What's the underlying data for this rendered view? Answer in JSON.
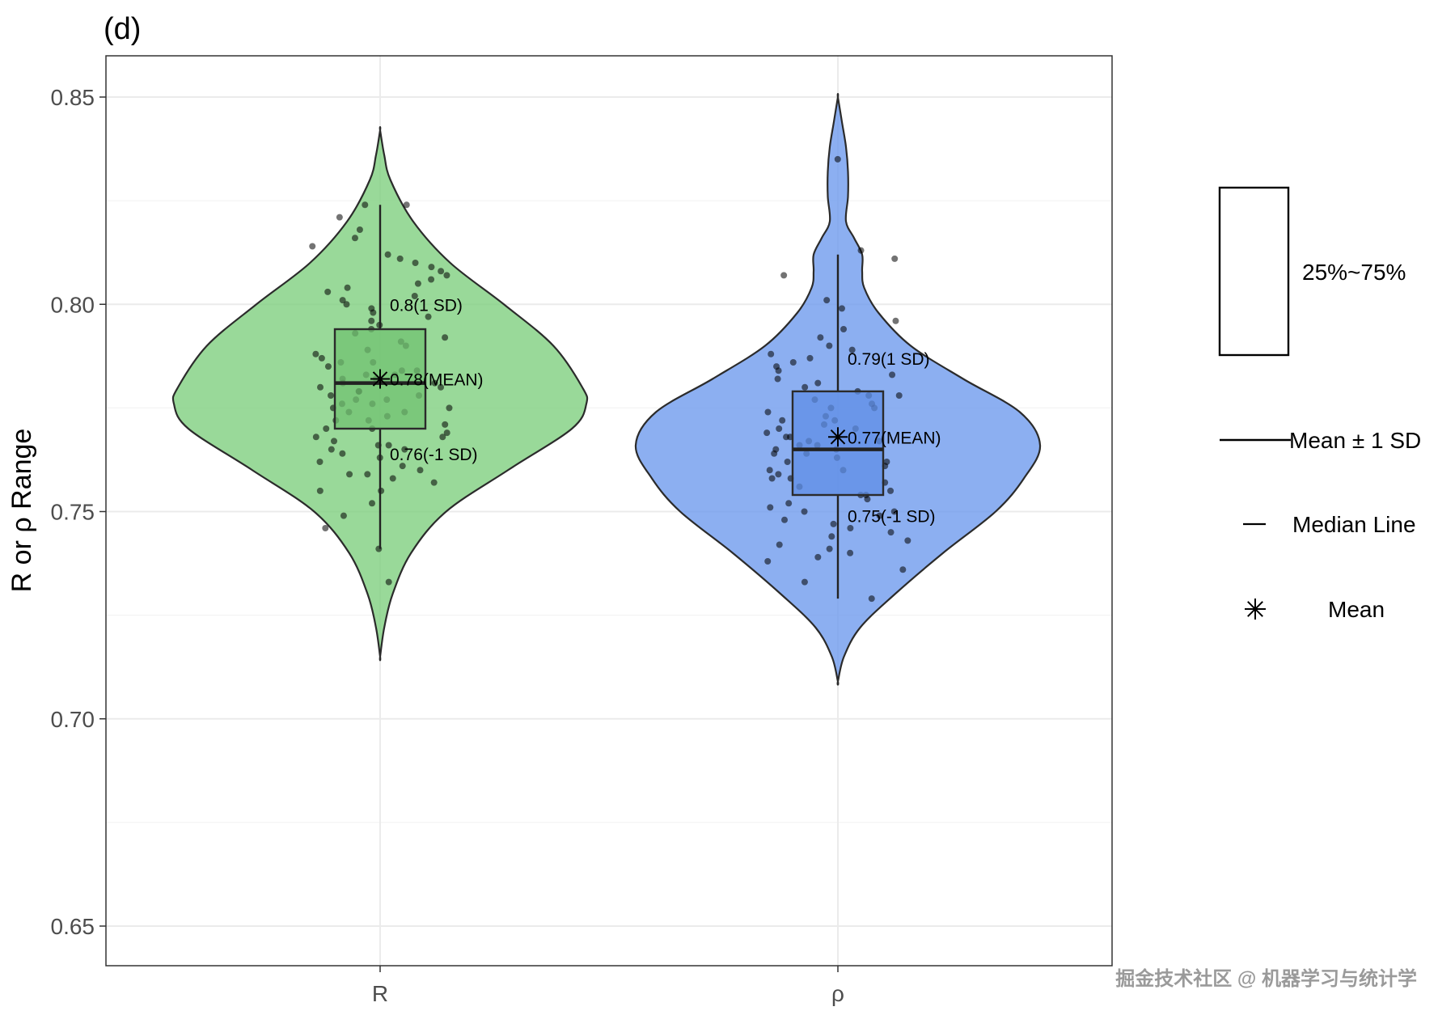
{
  "chart_data": {
    "type": "violin",
    "panel_label": "(d)",
    "ylabel": "R or ρ Range",
    "xlabel": "",
    "ylim": [
      0.64,
      0.86
    ],
    "yticks": [
      0.65,
      0.7,
      0.75,
      0.8,
      0.85
    ],
    "ytick_labels": [
      "0.65",
      "0.70",
      "0.75",
      "0.80",
      "0.85"
    ],
    "grid": true,
    "categories": [
      "R",
      "ρ"
    ],
    "groups": [
      {
        "category": "R",
        "color": "#7fcf7f",
        "box_color": "#72c272",
        "density_y": [
          0.715,
          0.722,
          0.73,
          0.74,
          0.75,
          0.76,
          0.77,
          0.776,
          0.78,
          0.79,
          0.8,
          0.81,
          0.82,
          0.83,
          0.836,
          0.842
        ],
        "density_w": [
          0.0,
          0.02,
          0.06,
          0.15,
          0.32,
          0.62,
          0.93,
          1.0,
          0.98,
          0.84,
          0.6,
          0.34,
          0.16,
          0.05,
          0.02,
          0.0
        ],
        "q1": 0.77,
        "median": 0.781,
        "q3": 0.794,
        "whisker_low": 0.741,
        "whisker_high": 0.824,
        "mean": 0.782,
        "annotations": [
          "0.8(1 SD)",
          "0.78(MEAN)",
          "0.76(-1 SD)"
        ],
        "annotation_y": [
          0.8,
          0.782,
          0.764
        ],
        "points": [
          0.741,
          0.733,
          0.746,
          0.749,
          0.752,
          0.755,
          0.755,
          0.757,
          0.758,
          0.759,
          0.759,
          0.76,
          0.761,
          0.762,
          0.763,
          0.764,
          0.765,
          0.765,
          0.766,
          0.766,
          0.767,
          0.768,
          0.768,
          0.769,
          0.77,
          0.77,
          0.771,
          0.772,
          0.772,
          0.773,
          0.774,
          0.774,
          0.775,
          0.775,
          0.776,
          0.776,
          0.777,
          0.777,
          0.778,
          0.778,
          0.779,
          0.779,
          0.78,
          0.78,
          0.781,
          0.781,
          0.782,
          0.782,
          0.783,
          0.783,
          0.784,
          0.784,
          0.785,
          0.786,
          0.786,
          0.787,
          0.788,
          0.789,
          0.79,
          0.791,
          0.792,
          0.793,
          0.794,
          0.795,
          0.796,
          0.797,
          0.798,
          0.799,
          0.8,
          0.801,
          0.802,
          0.803,
          0.804,
          0.805,
          0.806,
          0.807,
          0.808,
          0.809,
          0.81,
          0.811,
          0.812,
          0.814,
          0.816,
          0.818,
          0.821,
          0.824,
          0.824
        ]
      },
      {
        "category": "ρ",
        "color": "#6f9bee",
        "box_color": "#5f8ee6",
        "density_y": [
          0.709,
          0.715,
          0.722,
          0.73,
          0.74,
          0.75,
          0.758,
          0.766,
          0.774,
          0.782,
          0.79,
          0.798,
          0.804,
          0.808,
          0.812,
          0.816,
          0.82,
          0.826,
          0.832,
          0.838,
          0.844,
          0.85
        ],
        "density_w": [
          0.0,
          0.03,
          0.11,
          0.28,
          0.52,
          0.78,
          0.92,
          1.0,
          0.9,
          0.62,
          0.36,
          0.2,
          0.13,
          0.12,
          0.12,
          0.08,
          0.04,
          0.05,
          0.05,
          0.04,
          0.02,
          0.0
        ],
        "q1": 0.754,
        "median": 0.765,
        "q3": 0.779,
        "whisker_low": 0.729,
        "whisker_high": 0.812,
        "mean": 0.768,
        "annotations": [
          "0.79(1 SD)",
          "0.77(MEAN)",
          "0.75(-1 SD)"
        ],
        "annotation_y": [
          0.787,
          0.768,
          0.749
        ],
        "points": [
          0.729,
          0.733,
          0.736,
          0.738,
          0.739,
          0.74,
          0.741,
          0.742,
          0.743,
          0.744,
          0.745,
          0.746,
          0.747,
          0.748,
          0.749,
          0.75,
          0.75,
          0.751,
          0.752,
          0.753,
          0.754,
          0.754,
          0.755,
          0.756,
          0.757,
          0.758,
          0.758,
          0.759,
          0.76,
          0.76,
          0.761,
          0.762,
          0.762,
          0.763,
          0.764,
          0.764,
          0.765,
          0.765,
          0.766,
          0.766,
          0.767,
          0.767,
          0.768,
          0.768,
          0.769,
          0.77,
          0.77,
          0.771,
          0.772,
          0.772,
          0.773,
          0.774,
          0.775,
          0.775,
          0.776,
          0.777,
          0.778,
          0.778,
          0.779,
          0.78,
          0.781,
          0.782,
          0.783,
          0.784,
          0.785,
          0.786,
          0.787,
          0.788,
          0.789,
          0.79,
          0.792,
          0.794,
          0.796,
          0.799,
          0.801,
          0.807,
          0.811,
          0.813,
          0.835
        ]
      }
    ],
    "legend": {
      "placement": "right",
      "items": [
        {
          "symbol": "box",
          "label": "25%~75%"
        },
        {
          "symbol": "whisker",
          "label": "Mean ± 1 SD"
        },
        {
          "symbol": "median",
          "label": "Median Line"
        },
        {
          "symbol": "asterisk",
          "label": "Mean"
        }
      ]
    }
  },
  "watermark": "掘金技术社区 @ 机器学习与统计学"
}
